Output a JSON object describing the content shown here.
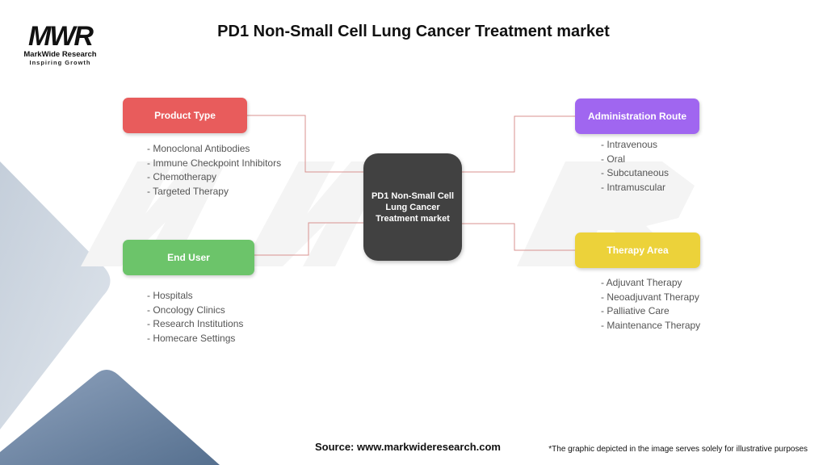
{
  "title": "PD1 Non-Small Cell Lung Cancer Treatment market",
  "logo": {
    "mark": "MWR",
    "name": "MarkWide Research",
    "tagline": "Inspiring Growth"
  },
  "center": "PD1 Non-Small Cell Lung Cancer Treatment market",
  "categories": [
    {
      "label": "Product Type",
      "color": "#e85c5c",
      "items": [
        "- Monoclonal Antibodies",
        "- Immune Checkpoint Inhibitors",
        "- Chemotherapy",
        "- Targeted Therapy"
      ]
    },
    {
      "label": "End User",
      "color": "#6cc46a",
      "items": [
        "- Hospitals",
        "- Oncology Clinics",
        "- Research Institutions",
        "- Homecare Settings"
      ]
    },
    {
      "label": "Administration Route",
      "color": "#a066f0",
      "items": [
        "- Intravenous",
        "- Oral",
        "- Subcutaneous",
        "- Intramuscular"
      ]
    },
    {
      "label": "Therapy Area",
      "color": "#ecd23a",
      "items": [
        "- Adjuvant Therapy",
        "- Neoadjuvant Therapy",
        "- Palliative Care",
        "- Maintenance Therapy"
      ]
    }
  ],
  "connector_color": "#d9928f",
  "source": "Source: www.markwideresearch.com",
  "disclaimer": "*The graphic depicted in the image serves solely for illustrative purposes"
}
